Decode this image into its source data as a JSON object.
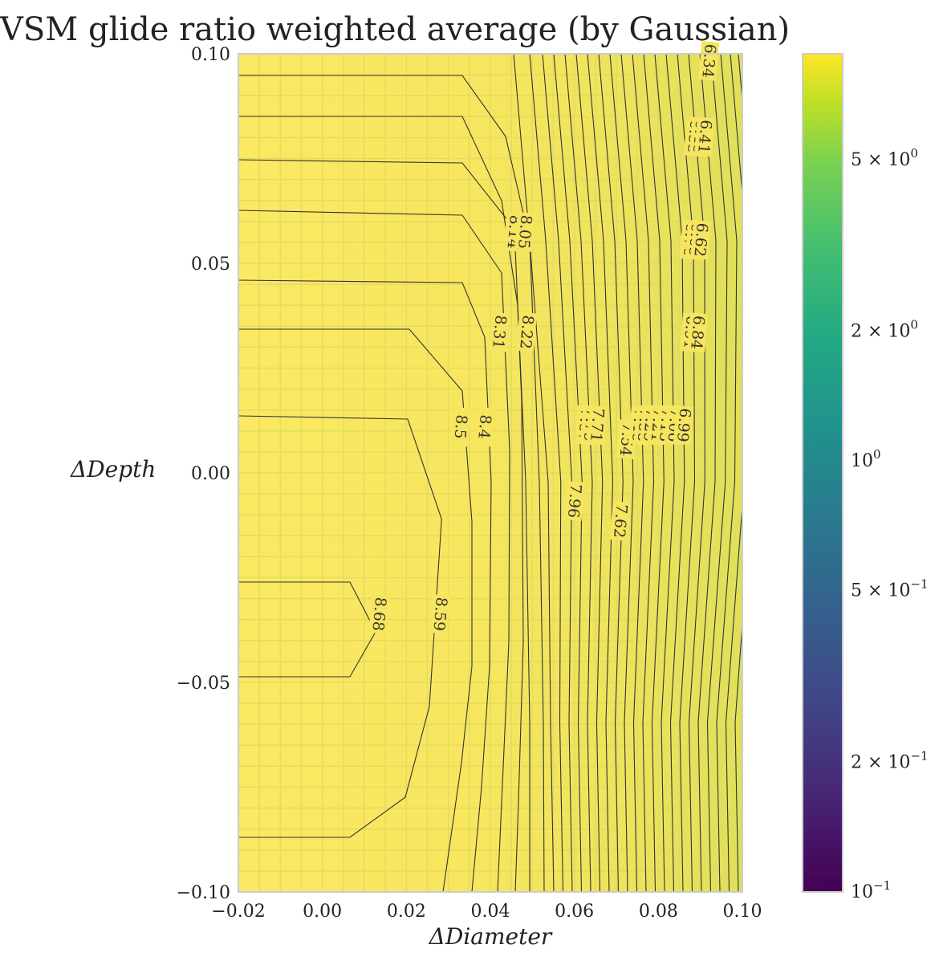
{
  "chart_data": {
    "type": "heatmap",
    "title": "VSM glide ratio weighted average (by Gaussian)",
    "xlabel": "ΔDiameter",
    "ylabel": "ΔDepth",
    "xlim": [
      -0.02,
      0.1
    ],
    "ylim": [
      -0.1,
      0.1
    ],
    "x_ticks": [
      "−0.02",
      "0.00",
      "0.02",
      "0.04",
      "0.06",
      "0.08",
      "0.10"
    ],
    "y_ticks": [
      "−0.10",
      "−0.05",
      "0.00",
      "0.05",
      "0.10"
    ],
    "colorbar": {
      "scale": "log",
      "colormap": "viridis",
      "range": [
        0.1,
        8.8
      ],
      "ticks": [
        {
          "value": 0.1,
          "label": "10",
          "exp": "−1"
        },
        {
          "value": 0.2,
          "label": "2 × 10",
          "exp": "−1"
        },
        {
          "value": 0.5,
          "label": "5 × 10",
          "exp": "−1"
        },
        {
          "value": 1,
          "label": "10",
          "exp": "0"
        },
        {
          "value": 2,
          "label": "2 × 10",
          "exp": "0"
        },
        {
          "value": 5,
          "label": "5 × 10",
          "exp": "0"
        }
      ]
    },
    "grid": true,
    "contour_labels": [
      {
        "text": "8.68",
        "x": 0.0135,
        "y": -0.0337
      },
      {
        "text": "8.59",
        "x": 0.028,
        "y": -0.0337
      },
      {
        "text": "8.5",
        "x": 0.0329,
        "y": 0.011
      },
      {
        "text": "8.4",
        "x": 0.0386,
        "y": 0.011
      },
      {
        "text": "8.31",
        "x": 0.0421,
        "y": 0.0336
      },
      {
        "text": "8.22",
        "x": 0.0486,
        "y": 0.0336
      },
      {
        "text": "8.14",
        "x": 0.0456,
        "y": 0.0575
      },
      {
        "text": "8.05",
        "x": 0.0482,
        "y": 0.0575
      },
      {
        "text": "7.96",
        "x": 0.06,
        "y": -0.0067
      },
      {
        "text": "7.87",
        "x": 0.0625,
        "y": 0.0114
      },
      {
        "text": "7.79",
        "x": 0.0638,
        "y": 0.0114
      },
      {
        "text": "7.71",
        "x": 0.0654,
        "y": 0.0114
      },
      {
        "text": "7.62",
        "x": 0.0709,
        "y": -0.0115
      },
      {
        "text": "7.54",
        "x": 0.0724,
        "y": 0.008
      },
      {
        "text": "7.46",
        "x": 0.0753,
        "y": 0.0114
      },
      {
        "text": "7.38",
        "x": 0.0766,
        "y": 0.0114
      },
      {
        "text": "7.29",
        "x": 0.078,
        "y": 0.0114
      },
      {
        "text": "7.21",
        "x": 0.0798,
        "y": 0.0114
      },
      {
        "text": "7.13",
        "x": 0.0818,
        "y": 0.0114
      },
      {
        "text": "7.06",
        "x": 0.0838,
        "y": 0.0114
      },
      {
        "text": "6.99",
        "x": 0.086,
        "y": 0.0114
      },
      {
        "text": "6.91",
        "x": 0.0876,
        "y": 0.0335
      },
      {
        "text": "6.84",
        "x": 0.0893,
        "y": 0.0335
      },
      {
        "text": "6.76",
        "x": 0.0875,
        "y": 0.0556
      },
      {
        "text": "6.69",
        "x": 0.0888,
        "y": 0.0556
      },
      {
        "text": "6.62",
        "x": 0.0901,
        "y": 0.0556
      },
      {
        "text": "6.55",
        "x": 0.0885,
        "y": 0.0802
      },
      {
        "text": "6.48",
        "x": 0.0898,
        "y": 0.0802
      },
      {
        "text": "6.41",
        "x": 0.091,
        "y": 0.0802
      },
      {
        "text": "6.34",
        "x": 0.092,
        "y": 0.0983
      }
    ]
  }
}
